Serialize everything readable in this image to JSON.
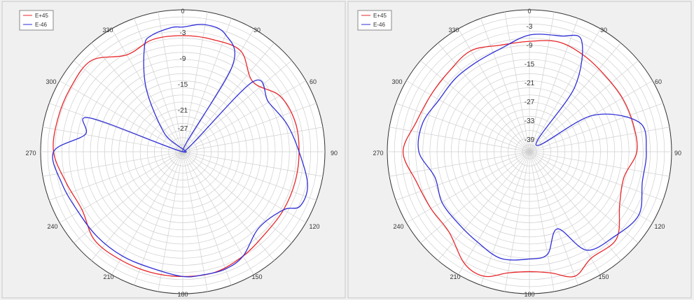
{
  "colors": {
    "series_1": "#e8262a",
    "series_2": "#2f2fd8",
    "grid": "#cfcfcf",
    "plot_bg": "#ffffff",
    "panel_bg": "#f0f0f0"
  },
  "chart_data": [
    {
      "type": "polar-line",
      "title": "",
      "angle_unit": "deg",
      "angle_ticks": [
        "0",
        "30",
        "60",
        "90",
        "120",
        "150",
        "180",
        "210",
        "240",
        "270",
        "300",
        "330"
      ],
      "radial_tick_labels": [
        "-3",
        "-9",
        "-15",
        "-21",
        "-27"
      ],
      "r_range_db": [
        -33,
        0
      ],
      "grid": true,
      "legend_position": "top-left",
      "series": [
        {
          "name": "E+45",
          "color_key": "series_1",
          "angles": [
            0,
            15,
            30,
            45,
            60,
            75,
            90,
            105,
            120,
            135,
            150,
            165,
            180,
            195,
            210,
            225,
            240,
            255,
            270,
            285,
            300,
            315,
            330,
            345
          ],
          "values": [
            -6,
            -6,
            -6,
            -10,
            -7,
            -6,
            -6,
            -6,
            -6,
            -6,
            -5,
            -4,
            -4,
            -4,
            -4,
            -4,
            -6,
            -5,
            -3,
            -3,
            -3,
            -3,
            -7,
            -6
          ]
        },
        {
          "name": "E-46",
          "color_key": "series_2",
          "angles": [
            0,
            10,
            20,
            30,
            37,
            45,
            60,
            75,
            90,
            105,
            115,
            120,
            135,
            150,
            160,
            170,
            180,
            195,
            210,
            225,
            240,
            255,
            270,
            280,
            290,
            300,
            315,
            330,
            340,
            345,
            355
          ],
          "values": [
            -4,
            -3,
            -4,
            -10,
            -33,
            -10,
            -10,
            -8,
            -6,
            -3,
            -3,
            -6,
            -8,
            -5,
            -4,
            -4,
            -4,
            -5,
            -5,
            -5,
            -5,
            -4,
            -3,
            -10,
            -10,
            -33,
            -27,
            -16,
            -7,
            -5,
            -4
          ]
        }
      ]
    },
    {
      "type": "polar-line",
      "title": "",
      "angle_unit": "deg",
      "angle_ticks": [
        "0",
        "30",
        "60",
        "90",
        "120",
        "150",
        "180",
        "210",
        "240",
        "270",
        "300",
        "330"
      ],
      "radial_tick_labels": [
        "-3",
        "-9",
        "-15",
        "-21",
        "-27",
        "-33",
        "-39"
      ],
      "r_range_db": [
        -45,
        0
      ],
      "grid": true,
      "legend_position": "top-left",
      "series": [
        {
          "name": "E+45",
          "color_key": "series_1",
          "angles": [
            0,
            15,
            30,
            45,
            60,
            75,
            90,
            105,
            120,
            135,
            150,
            160,
            170,
            180,
            190,
            200,
            210,
            225,
            240,
            255,
            270,
            285,
            300,
            315,
            330,
            345
          ],
          "values": [
            -10,
            -9,
            -10,
            -11,
            -11,
            -11,
            -11,
            -14,
            -12,
            -6,
            -6,
            -3,
            -6,
            -7,
            -6,
            -3,
            -4,
            -9,
            -9,
            -8,
            -5,
            -8,
            -9,
            -9,
            -8,
            -10
          ]
        },
        {
          "name": "E-46",
          "color_key": "series_2",
          "angles": [
            0,
            15,
            25,
            35,
            45,
            60,
            75,
            90,
            105,
            120,
            135,
            150,
            160,
            170,
            180,
            195,
            210,
            225,
            240,
            255,
            270,
            285,
            300,
            315,
            330,
            345
          ],
          "values": [
            -8,
            -7,
            -6,
            -20,
            -42,
            -22,
            -9,
            -8,
            -8,
            -5,
            -7,
            -9,
            -19,
            -12,
            -11,
            -10,
            -12,
            -13,
            -13,
            -14,
            -10,
            -10,
            -12,
            -12,
            -12,
            -11
          ]
        }
      ]
    }
  ]
}
